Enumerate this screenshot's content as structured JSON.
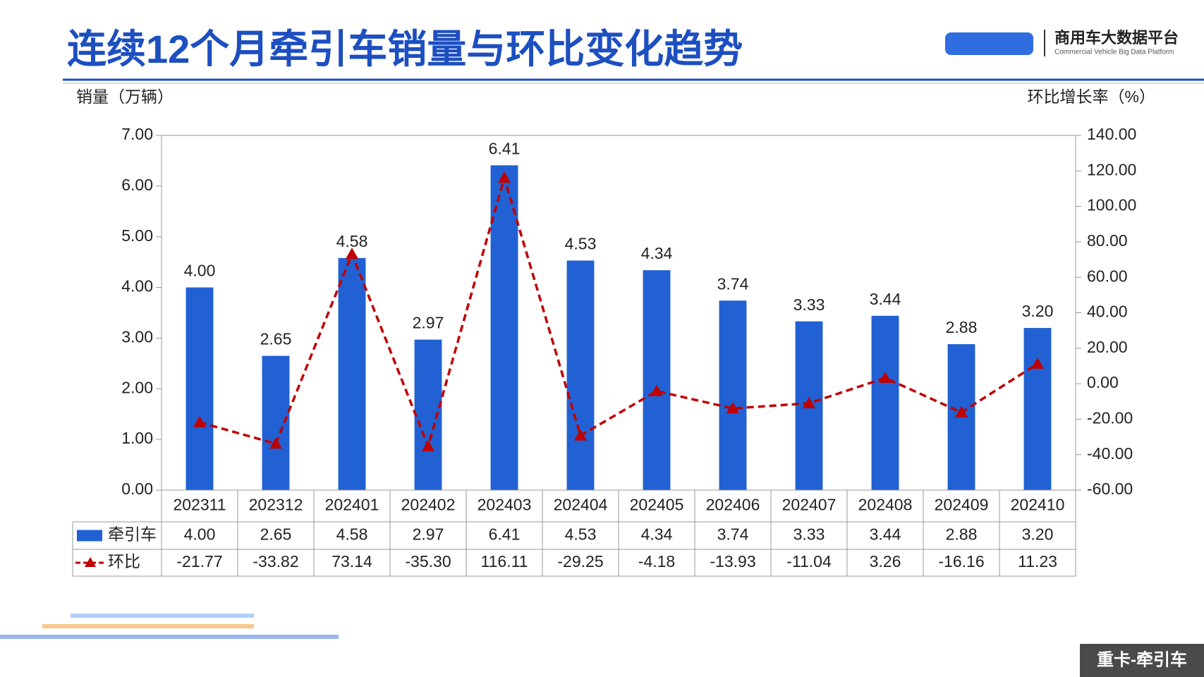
{
  "header": {
    "title": "连续12个月牵引车销量与环比变化趋势",
    "logo_name": "商用车大数据平台",
    "logo_subtitle": "Commercial Vehicle Big Data Platform"
  },
  "footer": {
    "tag": "重卡-牵引车"
  },
  "chart_data": {
    "type": "bar",
    "ylabel": "销量（万辆）",
    "y2label": "环比增长率（%）",
    "categories": [
      "202311",
      "202312",
      "202401",
      "202402",
      "202403",
      "202404",
      "202405",
      "202406",
      "202407",
      "202408",
      "202409",
      "202410"
    ],
    "series": [
      {
        "name": "牵引车",
        "color": "#2161d3",
        "type": "bar",
        "axis": "y",
        "values": [
          4.0,
          2.65,
          4.58,
          2.97,
          6.41,
          4.53,
          4.34,
          3.74,
          3.33,
          3.44,
          2.88,
          3.2
        ],
        "value_labels": [
          "4.00",
          "2.65",
          "4.58",
          "2.97",
          "6.41",
          "4.53",
          "4.34",
          "3.74",
          "3.33",
          "3.44",
          "2.88",
          "3.20"
        ]
      },
      {
        "name": "环比",
        "color": "#c00000",
        "type": "line",
        "axis": "y2",
        "values": [
          -21.77,
          -33.82,
          73.14,
          -35.3,
          116.11,
          -29.25,
          -4.18,
          -13.93,
          -11.04,
          3.26,
          -16.16,
          11.23
        ],
        "value_labels": [
          "-21.77",
          "-33.82",
          "73.14",
          "-35.30",
          "116.11",
          "-29.25",
          "-4.18",
          "-13.93",
          "-11.04",
          "3.26",
          "-16.16",
          "11.23"
        ]
      }
    ],
    "ylim": [
      0,
      7
    ],
    "yticks": [
      {
        "value": 0,
        "label": "0.00"
      },
      {
        "value": 1,
        "label": "1.00"
      },
      {
        "value": 2,
        "label": "2.00"
      },
      {
        "value": 3,
        "label": "3.00"
      },
      {
        "value": 4,
        "label": "4.00"
      },
      {
        "value": 5,
        "label": "5.00"
      },
      {
        "value": 6,
        "label": "6.00"
      },
      {
        "value": 7,
        "label": "7.00"
      }
    ],
    "y2lim": [
      -60,
      140
    ],
    "y2ticks": [
      {
        "value": -60,
        "label": "-60.00"
      },
      {
        "value": -40,
        "label": "-40.00"
      },
      {
        "value": -20,
        "label": "-20.00"
      },
      {
        "value": 0,
        "label": "0.00"
      },
      {
        "value": 20,
        "label": "20.00"
      },
      {
        "value": 40,
        "label": "40.00"
      },
      {
        "value": 60,
        "label": "60.00"
      },
      {
        "value": 80,
        "label": "80.00"
      },
      {
        "value": 100,
        "label": "100.00"
      },
      {
        "value": 120,
        "label": "120.00"
      },
      {
        "value": 140,
        "label": "140.00"
      }
    ],
    "grid": false
  }
}
